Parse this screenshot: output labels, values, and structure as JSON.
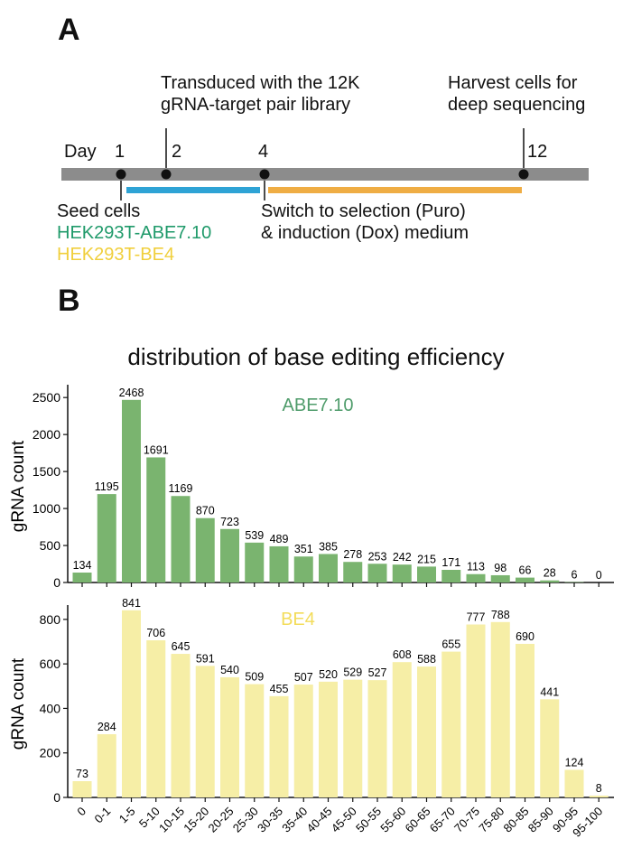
{
  "panel_a": {
    "label": "A",
    "day_label": "Day",
    "days": [
      "1",
      "2",
      "4",
      "12"
    ],
    "note_transduced": [
      "Transduced with the 12K",
      "gRNA-target pair library"
    ],
    "note_harvest": [
      "Harvest cells for",
      "deep sequencing"
    ],
    "note_seed": "Seed cells",
    "cell_line_1": "HEK293T-ABE7.10",
    "cell_line_2": "HEK293T-BE4",
    "note_switch": [
      "Switch to selection (Puro)",
      "& induction (Dox) medium"
    ],
    "colors": {
      "timeline": "#8c8c8c",
      "blue_bar": "#2ea3d5",
      "orange_bar": "#efad44",
      "cell_line_1": "#1f9a6a",
      "cell_line_2": "#f0cf3c"
    }
  },
  "panel_b": {
    "label": "B",
    "title": "distribution of base editing efficiency"
  },
  "chart_data": [
    {
      "type": "bar",
      "title": "ABE7.10",
      "ylabel": "gRNA count",
      "ylim": [
        0,
        2600
      ],
      "yticks": [
        0,
        500,
        1000,
        1500,
        2000,
        2500
      ],
      "color": "#7ab46f",
      "title_color": "#4f9c6b",
      "categories": [
        "0",
        "0-1",
        "1-5",
        "5-10",
        "10-15",
        "15-20",
        "20-25",
        "25-30",
        "30-35",
        "35-40",
        "40-45",
        "45-50",
        "50-55",
        "55-60",
        "60-65",
        "65-70",
        "70-75",
        "75-80",
        "80-85",
        "85-90",
        "90-95",
        "95-100"
      ],
      "values": [
        134,
        1195,
        2468,
        1691,
        1169,
        870,
        723,
        539,
        489,
        351,
        385,
        278,
        253,
        242,
        215,
        171,
        113,
        98,
        66,
        28,
        6,
        0
      ]
    },
    {
      "type": "bar",
      "title": "BE4",
      "ylabel": "gRNA count",
      "ylim": [
        0,
        840
      ],
      "yticks": [
        0,
        200,
        400,
        600,
        800
      ],
      "color": "#f6eea6",
      "title_color": "#f3dc5a",
      "categories": [
        "0",
        "0-1",
        "1-5",
        "5-10",
        "10-15",
        "15-20",
        "20-25",
        "25-30",
        "30-35",
        "35-40",
        "40-45",
        "45-50",
        "50-55",
        "55-60",
        "60-65",
        "65-70",
        "70-75",
        "75-80",
        "80-85",
        "85-90",
        "90-95",
        "95-100"
      ],
      "values": [
        73,
        284,
        841,
        706,
        645,
        591,
        540,
        509,
        455,
        507,
        520,
        529,
        527,
        608,
        588,
        655,
        777,
        788,
        690,
        441,
        124,
        8
      ]
    }
  ]
}
